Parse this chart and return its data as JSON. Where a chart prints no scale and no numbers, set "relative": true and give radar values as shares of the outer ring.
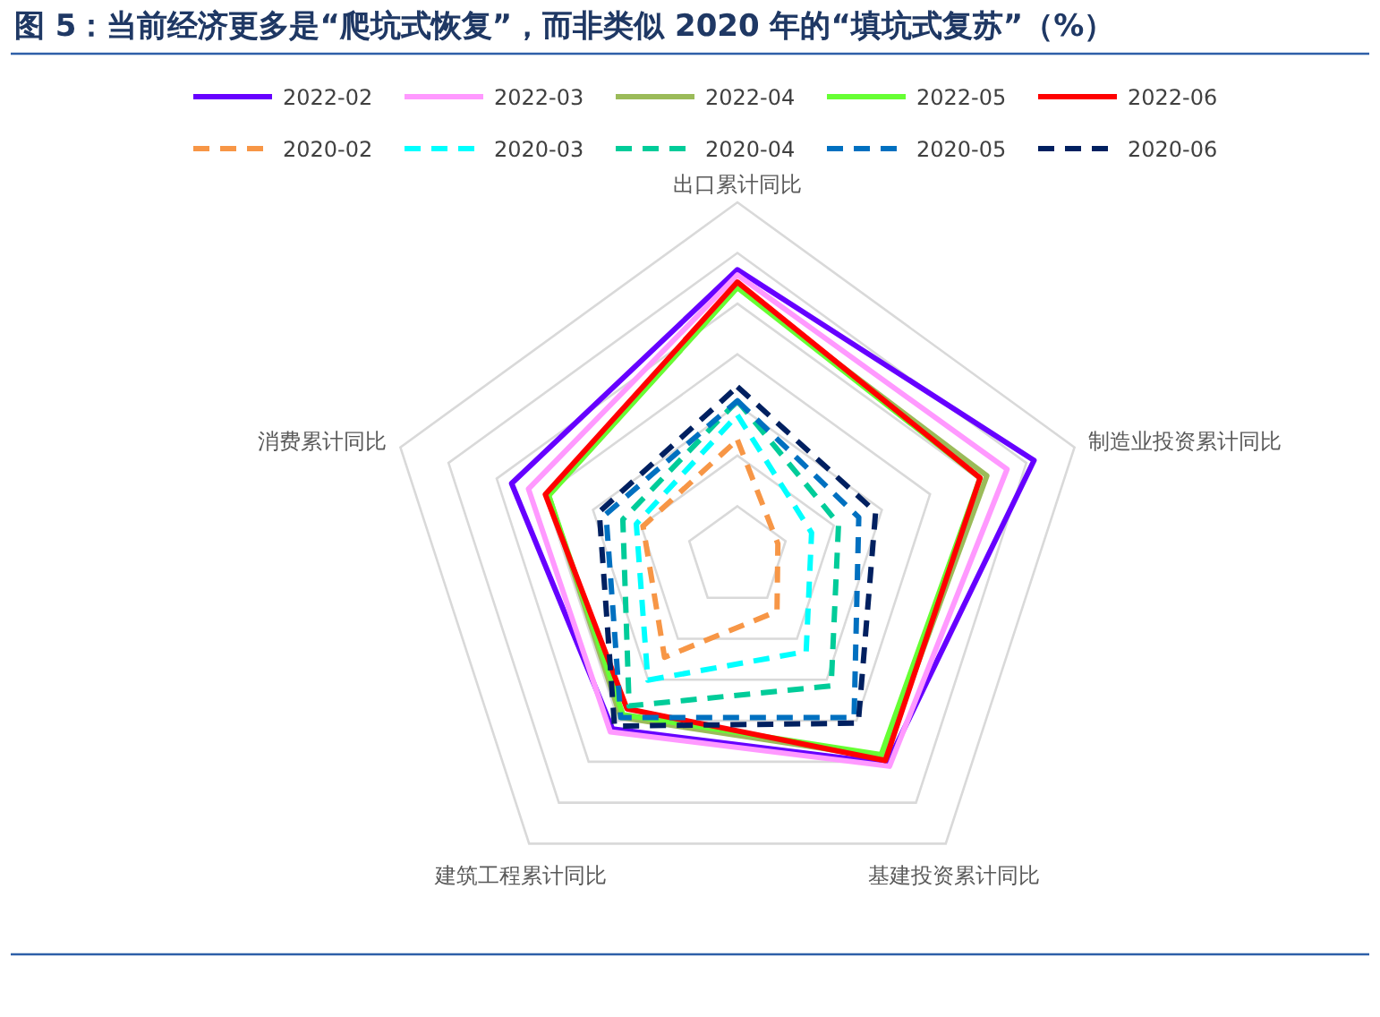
{
  "chart_data": {
    "type": "radar",
    "title": "图 5：当前经济更多是“爬坑式恢复”，而非类似 2020 年的“填坑式复苏”（%）",
    "relative": true,
    "grid": true,
    "legend": "top",
    "marker": "none",
    "categories": [
      "出口累计同比",
      "制造业投资累计同比",
      "基建投资累计同比",
      "建筑工程累计同比",
      "消费累计同比"
    ],
    "series": [
      {
        "name": "2022-02",
        "color": "#6600ff",
        "line_style": "solid",
        "values": [
          0.81,
          0.88,
          0.72,
          0.6,
          0.67
        ]
      },
      {
        "name": "2022-03",
        "color": "#ff99ff",
        "line_style": "solid",
        "values": [
          0.795,
          0.8,
          0.73,
          0.61,
          0.62
        ]
      },
      {
        "name": "2022-04",
        "color": "#9bbb59",
        "line_style": "solid",
        "values": [
          0.76,
          0.74,
          0.7,
          0.56,
          0.56
        ]
      },
      {
        "name": "2022-05",
        "color": "#66ff33",
        "line_style": "solid",
        "values": [
          0.76,
          0.72,
          0.69,
          0.55,
          0.56
        ]
      },
      {
        "name": "2022-06",
        "color": "#ff0000",
        "line_style": "solid",
        "values": [
          0.775,
          0.72,
          0.71,
          0.53,
          0.57
        ]
      },
      {
        "name": "2020-02",
        "color": "#f79646",
        "line_style": "dashed",
        "values": [
          0.33,
          0.12,
          0.19,
          0.35,
          0.28
        ]
      },
      {
        "name": "2020-03",
        "color": "#00ffff",
        "line_style": "dashed",
        "values": [
          0.4,
          0.22,
          0.33,
          0.43,
          0.3
        ]
      },
      {
        "name": "2020-04",
        "color": "#00cc99",
        "line_style": "dashed",
        "values": [
          0.44,
          0.3,
          0.45,
          0.52,
          0.34
        ]
      },
      {
        "name": "2020-05",
        "color": "#0070c0",
        "line_style": "dashed",
        "values": [
          0.44,
          0.36,
          0.56,
          0.56,
          0.39
        ]
      },
      {
        "name": "2020-06",
        "color": "#002060",
        "line_style": "dashed",
        "values": [
          0.48,
          0.41,
          0.58,
          0.59,
          0.41
        ]
      }
    ]
  }
}
